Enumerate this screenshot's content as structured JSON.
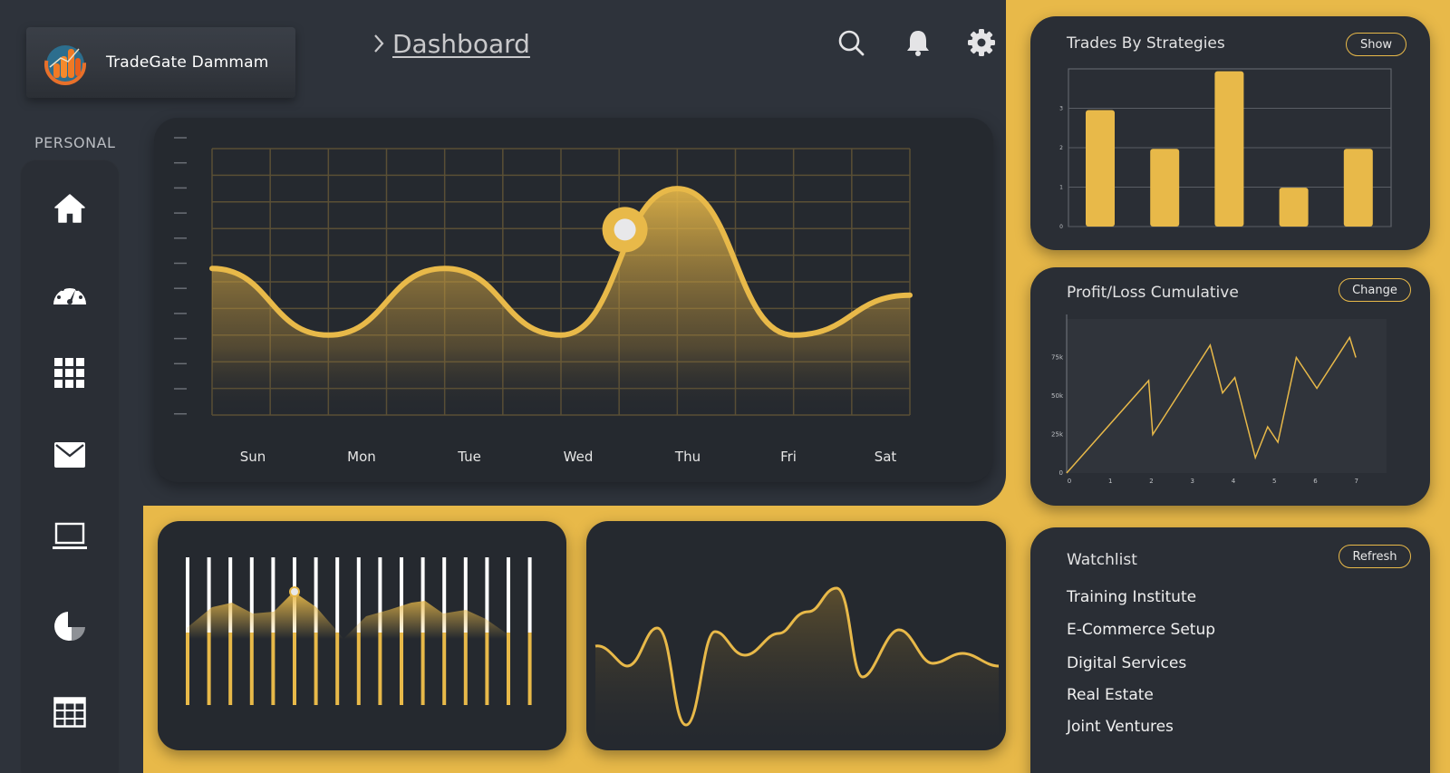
{
  "brand": {
    "name": "TradeGate Dammam"
  },
  "breadcrumb": {
    "title": "Dashboard"
  },
  "sidebar": {
    "section_label": "PERSONAL",
    "items": [
      {
        "icon": "home-icon"
      },
      {
        "icon": "speedometer-icon"
      },
      {
        "icon": "apps-grid-icon"
      },
      {
        "icon": "mail-icon"
      },
      {
        "icon": "laptop-icon"
      },
      {
        "icon": "pie-chart-icon"
      },
      {
        "icon": "table-icon"
      }
    ]
  },
  "header_icons": [
    "search-icon",
    "bell-icon",
    "gear-icon"
  ],
  "colors": {
    "accent": "#e8b949",
    "panel": "#25292f",
    "background": "#2e333b"
  },
  "main_chart": {
    "days": [
      "Sun",
      "Mon",
      "Tue",
      "Wed",
      "Thu",
      "Fri",
      "Sat"
    ]
  },
  "trades_card": {
    "title": "Trades By Strategies",
    "button": "Show"
  },
  "pnl_card": {
    "title": "Profit/Loss Cumulative",
    "button": "Change"
  },
  "watchlist": {
    "title": "Watchlist",
    "button": "Refresh",
    "items": [
      "Training Institute",
      "E-Commerce Setup",
      "Digital Services",
      "Real Estate",
      "Joint Ventures"
    ]
  },
  "chart_data": [
    {
      "type": "area",
      "x": [
        "Sun",
        "Mon",
        "Tue",
        "Wed",
        "Thu",
        "Fri",
        "Sat"
      ],
      "values": [
        55,
        30,
        55,
        30,
        85,
        30,
        45
      ],
      "highlight_point": "Wed"
    },
    {
      "type": "bar",
      "title": "Trades By Strategies",
      "categories": [
        "",
        "",
        "",
        "",
        ""
      ],
      "values": [
        3,
        2,
        4,
        1,
        2
      ],
      "yticks": [
        0,
        1,
        2,
        3
      ],
      "ylim": [
        0,
        4
      ]
    },
    {
      "type": "line",
      "title": "Profit/Loss Cumulative",
      "x": [
        0,
        2,
        2.1,
        3.5,
        3.8,
        4.1,
        4.6,
        4.9,
        5.15,
        5.6,
        6.1,
        6.9,
        7.05
      ],
      "values": [
        0,
        60,
        25,
        83,
        52,
        62,
        10,
        30,
        20,
        75,
        55,
        88,
        75
      ],
      "xticks": [
        0,
        1,
        2,
        3,
        4,
        5,
        6,
        7
      ],
      "yticks": [
        "0",
        "25k",
        "50k",
        "75k"
      ],
      "ylim": [
        0,
        100
      ]
    }
  ]
}
